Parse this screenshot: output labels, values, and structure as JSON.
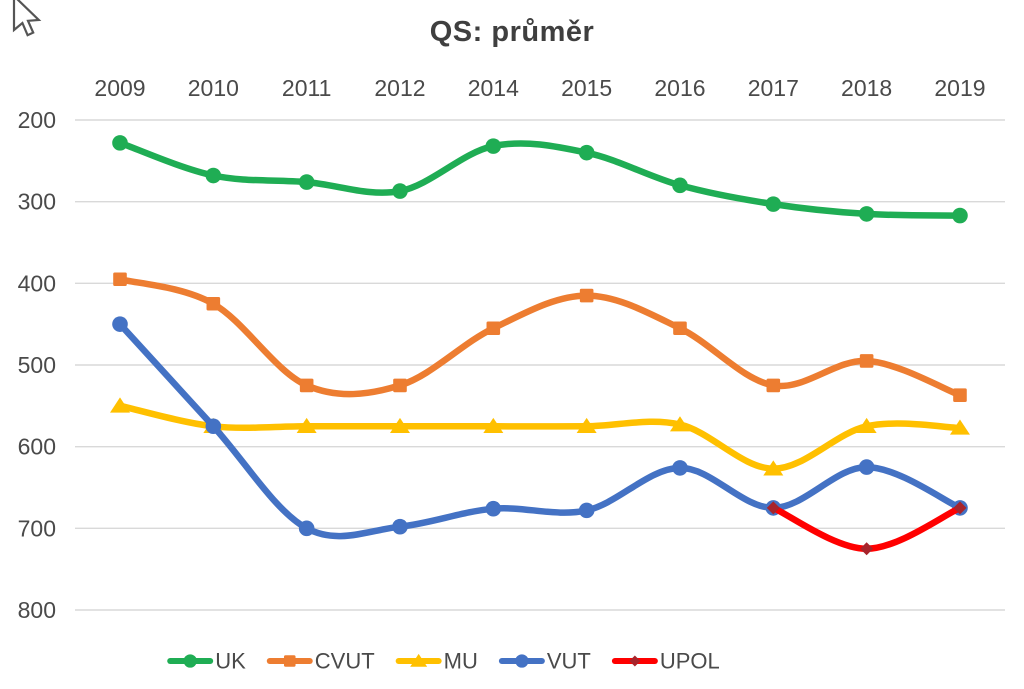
{
  "window": {
    "cursor_icon": "arrow-pointer",
    "background_color": "#ffffff"
  },
  "styles": {
    "title_color": "#3f3f3f",
    "tick_label_color": "#4a4a4a",
    "legend_text_color": "#4a4a4a",
    "grid_color": "#d9d9d9"
  },
  "chart_data": {
    "type": "line",
    "title": "QS: průměr",
    "smooth": true,
    "grid": true,
    "legend_position": "bottom",
    "x_axis": {
      "position": "top",
      "categories": [
        "2009",
        "2010",
        "2011",
        "2012",
        "2014",
        "2015",
        "2016",
        "2017",
        "2018",
        "2019"
      ]
    },
    "y_axis": {
      "min": 200,
      "max": 800,
      "step": 100,
      "inverted": true,
      "ticks": [
        "200",
        "300",
        "400",
        "500",
        "600",
        "700",
        "800"
      ]
    },
    "series": [
      {
        "name": "UK",
        "color": "#1FAD54",
        "marker": "circle",
        "values": [
          228,
          268,
          276,
          287,
          232,
          240,
          280,
          303,
          315,
          317
        ]
      },
      {
        "name": "CVUT",
        "color": "#ED7D31",
        "marker": "square",
        "values": [
          395,
          425,
          525,
          525,
          455,
          415,
          455,
          525,
          495,
          537
        ]
      },
      {
        "name": "MU",
        "color": "#FFC000",
        "marker": "triangle",
        "values": [
          550,
          575,
          575,
          575,
          575,
          575,
          573,
          627,
          575,
          577
        ]
      },
      {
        "name": "VUT",
        "color": "#4472C4",
        "marker": "circle",
        "values": [
          450,
          575,
          700,
          698,
          676,
          678,
          626,
          675,
          625,
          675
        ]
      },
      {
        "name": "UPOL",
        "color": "#FF0000",
        "marker": "diamond",
        "marker_color": "#A8242B",
        "values": [
          null,
          null,
          null,
          null,
          null,
          null,
          null,
          675,
          725,
          675
        ]
      }
    ]
  }
}
